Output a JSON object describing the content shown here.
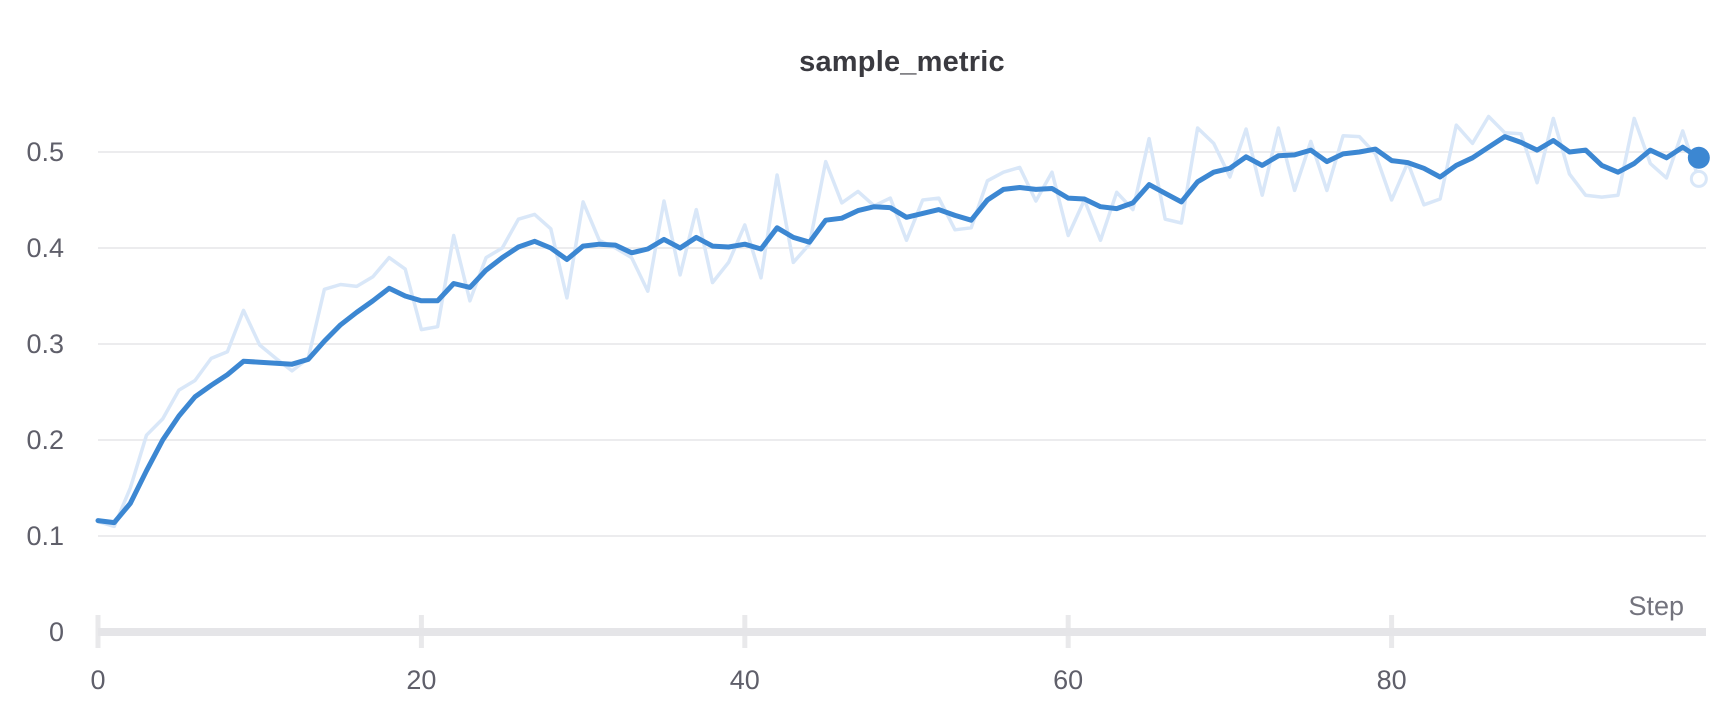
{
  "chart_data": {
    "type": "line",
    "title": "sample_metric",
    "xlabel": "Step",
    "ylabel": "",
    "legend": "none",
    "grid": "horizontal",
    "x_axis": {
      "tick_labels": [
        "0",
        "20",
        "40",
        "60",
        "80"
      ],
      "tick_values": [
        0,
        20,
        40,
        60,
        80
      ],
      "range": [
        0,
        99.5
      ]
    },
    "y_axis": {
      "tick_labels": [
        "0",
        "0.1",
        "0.2",
        "0.3",
        "0.4",
        "0.5"
      ],
      "tick_values": [
        0,
        0.1,
        0.2,
        0.3,
        0.4,
        0.5
      ],
      "range": [
        0,
        0.55
      ]
    },
    "x_start": 0,
    "x_step": 1,
    "series": [
      {
        "name": "raw",
        "role": "unsmoothed-background",
        "color": "#d9e7f8",
        "stroke_width": 3.5,
        "end_marker": "hollow-circle",
        "values": [
          0.115,
          0.11,
          0.15,
          0.205,
          0.222,
          0.252,
          0.262,
          0.285,
          0.292,
          0.335,
          0.299,
          0.285,
          0.272,
          0.285,
          0.357,
          0.362,
          0.36,
          0.37,
          0.39,
          0.378,
          0.315,
          0.318,
          0.413,
          0.345,
          0.39,
          0.4,
          0.43,
          0.435,
          0.42,
          0.348,
          0.448,
          0.408,
          0.4,
          0.39,
          0.355,
          0.449,
          0.372,
          0.44,
          0.364,
          0.385,
          0.424,
          0.369,
          0.476,
          0.385,
          0.404,
          0.49,
          0.447,
          0.459,
          0.444,
          0.452,
          0.408,
          0.45,
          0.452,
          0.419,
          0.421,
          0.47,
          0.479,
          0.484,
          0.449,
          0.479,
          0.413,
          0.45,
          0.408,
          0.458,
          0.44,
          0.514,
          0.43,
          0.426,
          0.525,
          0.509,
          0.474,
          0.524,
          0.455,
          0.525,
          0.46,
          0.511,
          0.46,
          0.517,
          0.516,
          0.498,
          0.45,
          0.489,
          0.445,
          0.451,
          0.528,
          0.509,
          0.537,
          0.52,
          0.519,
          0.468,
          0.535,
          0.477,
          0.455,
          0.453,
          0.455,
          0.535,
          0.488,
          0.473,
          0.522,
          0.472
        ]
      },
      {
        "name": "smoothed",
        "role": "primary",
        "color": "#3c87d2",
        "stroke_width": 5,
        "end_marker": "solid-circle",
        "values": [
          0.116,
          0.114,
          0.134,
          0.168,
          0.2,
          0.225,
          0.245,
          0.257,
          0.268,
          0.282,
          0.281,
          0.28,
          0.279,
          0.284,
          0.303,
          0.32,
          0.333,
          0.345,
          0.358,
          0.35,
          0.345,
          0.345,
          0.363,
          0.359,
          0.377,
          0.39,
          0.401,
          0.407,
          0.4,
          0.388,
          0.402,
          0.404,
          0.403,
          0.395,
          0.399,
          0.409,
          0.4,
          0.411,
          0.402,
          0.401,
          0.404,
          0.399,
          0.421,
          0.411,
          0.406,
          0.429,
          0.431,
          0.439,
          0.443,
          0.442,
          0.432,
          0.436,
          0.44,
          0.434,
          0.429,
          0.45,
          0.461,
          0.463,
          0.461,
          0.462,
          0.452,
          0.451,
          0.443,
          0.441,
          0.447,
          0.466,
          0.457,
          0.448,
          0.469,
          0.479,
          0.483,
          0.495,
          0.486,
          0.496,
          0.497,
          0.502,
          0.49,
          0.498,
          0.5,
          0.503,
          0.491,
          0.489,
          0.483,
          0.474,
          0.486,
          0.494,
          0.505,
          0.516,
          0.51,
          0.502,
          0.512,
          0.5,
          0.502,
          0.486,
          0.479,
          0.488,
          0.502,
          0.494,
          0.505,
          0.494
        ]
      }
    ],
    "colors": {
      "title": "#3a3a40",
      "tick_label": "#5f5f6a",
      "axis_label": "#73737d",
      "gridline": "#e6e6e8",
      "axis_bar": "#e5e5e8",
      "tick_mark": "#e9e9eb",
      "smoothed_line": "#3c87d2",
      "raw_line": "#d9e7f8"
    }
  }
}
